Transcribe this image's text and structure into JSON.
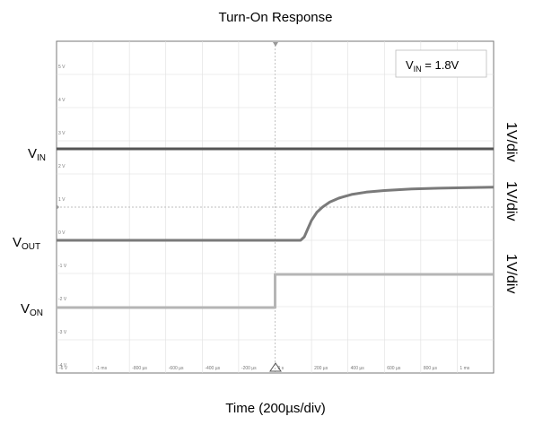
{
  "chart_data": {
    "type": "line",
    "title": "Turn-On Response",
    "xlabel": "Time (200µs/div)",
    "annotation": {
      "prefix": "V",
      "sub": "IN",
      "suffix": " = 1.8V"
    },
    "channel_labels": [
      {
        "prefix": "V",
        "sub": "IN"
      },
      {
        "prefix": "V",
        "sub": "OUT"
      },
      {
        "prefix": "V",
        "sub": "ON"
      }
    ],
    "scale_labels": [
      "1V/div",
      "1V/div",
      "1V/div"
    ],
    "y_tick_labels": [
      "5 V",
      "4 V",
      "3 V",
      "2 V",
      "1 V",
      "0 V",
      "-1 V",
      "-2 V",
      "-3 V",
      "-4 V"
    ],
    "x_tick_labels": [
      "-1 ms",
      "-800 µs",
      "-600 µs",
      "-400 µs",
      "-200 µs",
      "0 s",
      "200 µs",
      "400 µs",
      "600 µs",
      "800 µs",
      "1 ms"
    ],
    "xlim_us": [
      -1200,
      1200
    ],
    "series": [
      {
        "name": "VIN",
        "color": "#555555",
        "points": [
          [
            -1200,
            1.8
          ],
          [
            1200,
            1.8
          ]
        ]
      },
      {
        "name": "VOUT",
        "color": "#7a7a7a",
        "points": [
          [
            -1200,
            0
          ],
          [
            140,
            0
          ],
          [
            160,
            0.1
          ],
          [
            180,
            0.35
          ],
          [
            200,
            0.6
          ],
          [
            230,
            0.85
          ],
          [
            260,
            1.0
          ],
          [
            300,
            1.15
          ],
          [
            350,
            1.27
          ],
          [
            420,
            1.38
          ],
          [
            500,
            1.45
          ],
          [
            600,
            1.5
          ],
          [
            750,
            1.55
          ],
          [
            900,
            1.57
          ],
          [
            1200,
            1.6
          ]
        ]
      },
      {
        "name": "VON",
        "color": "#b5b5b5",
        "points": [
          [
            -1200,
            0
          ],
          [
            0,
            0
          ],
          [
            0,
            1.0
          ],
          [
            1200,
            1.0
          ]
        ]
      }
    ]
  }
}
